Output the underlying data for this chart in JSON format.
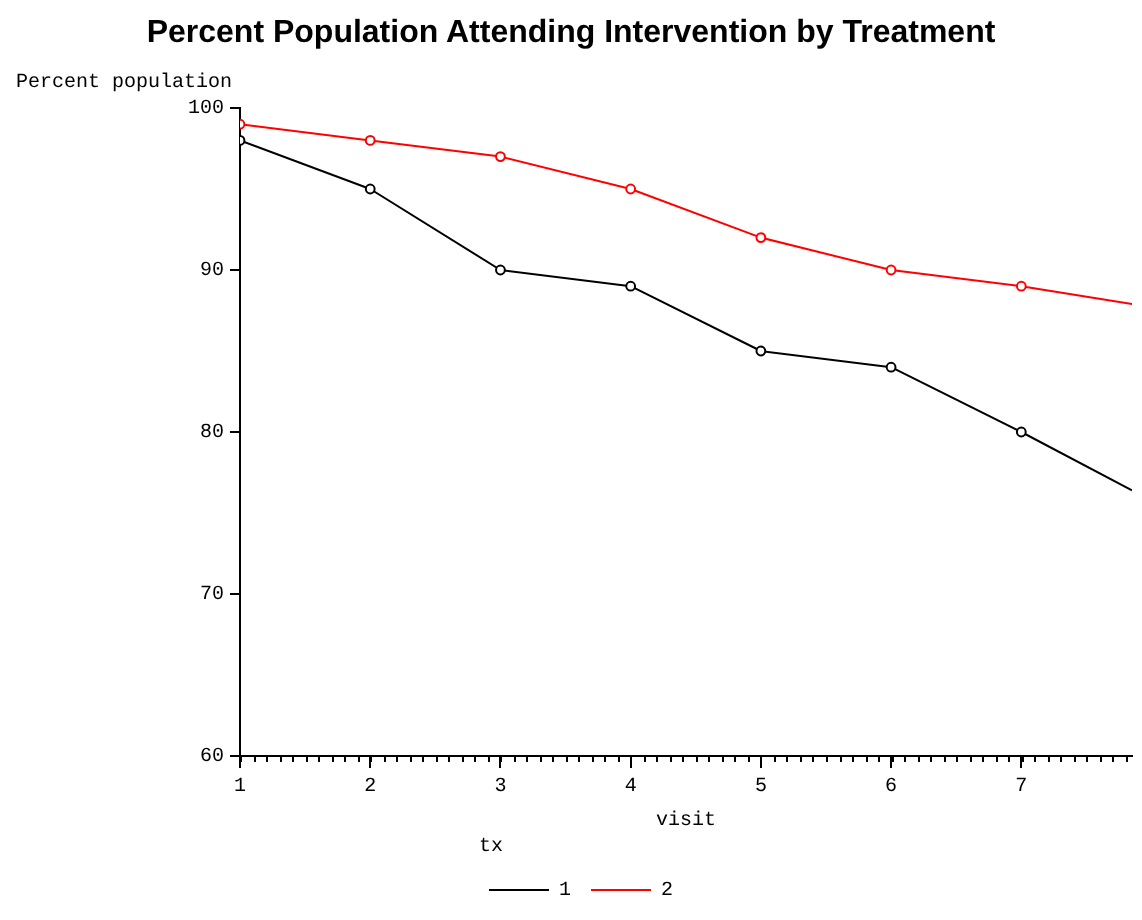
{
  "chart_data": {
    "type": "line",
    "title": "Percent Population Attending Intervention by Treatment",
    "xlabel": "visit",
    "ylabel": "Percent population",
    "legend_title": "tx",
    "x": [
      1,
      2,
      3,
      4,
      5,
      6,
      7,
      7.85
    ],
    "series": [
      {
        "name": "1",
        "color": "#000000",
        "values": [
          98,
          95,
          90,
          89,
          85,
          84,
          80,
          76.4
        ]
      },
      {
        "name": "2",
        "color": "#ff0000",
        "values": [
          99,
          98,
          97,
          95,
          92,
          90,
          89,
          87.9
        ]
      }
    ],
    "xlim": [
      1,
      7.85
    ],
    "xticks": [
      1,
      2,
      3,
      4,
      5,
      6,
      7
    ],
    "ylim": [
      60,
      100
    ],
    "yticks": [
      60,
      70,
      80,
      90,
      100
    ],
    "grid": false,
    "legend": "bottom",
    "marker": "circle",
    "line_style": "solid"
  }
}
